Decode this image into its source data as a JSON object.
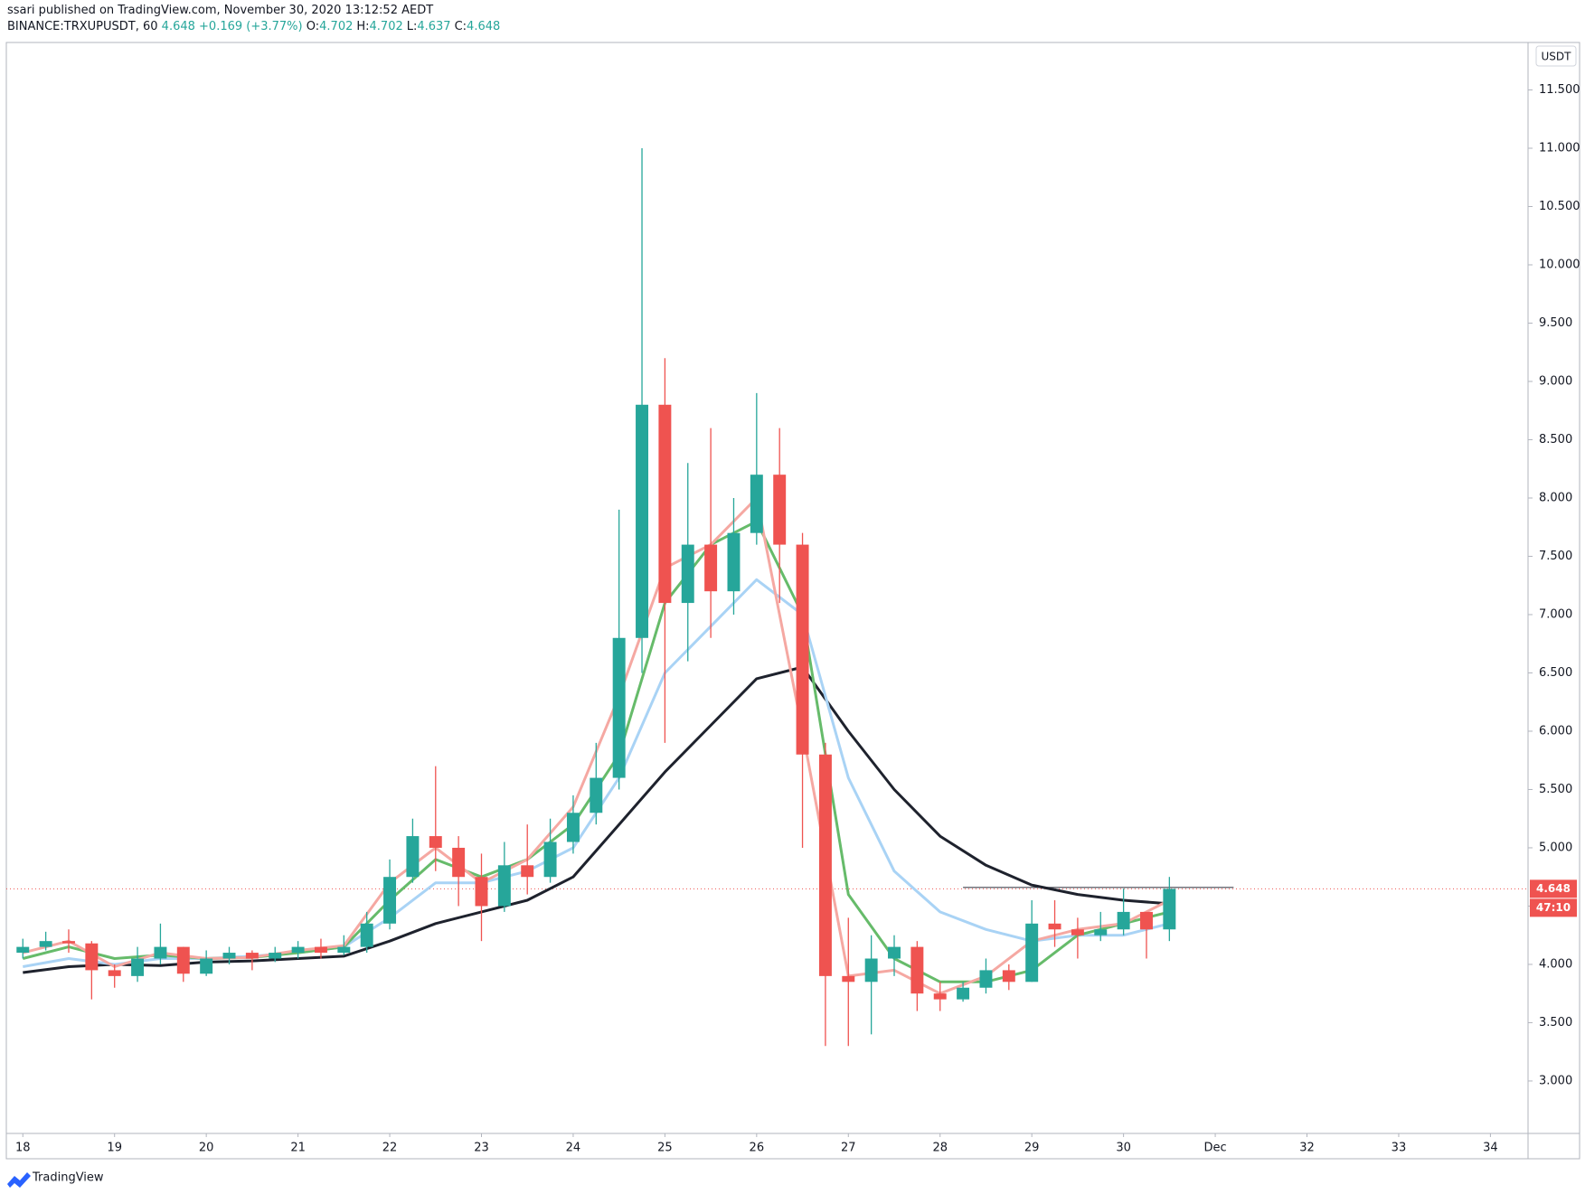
{
  "header": {
    "publish_line": "ssari published on TradingView.com, November 30, 2020 13:12:52 AEDT",
    "brand": "TradingView"
  },
  "chart_data": {
    "type": "candlestick",
    "symbol": "BINANCE:TRXUPUSDT, 60",
    "last_close": 4.648,
    "change": "+0.169 (+3.77%)",
    "ohlc": [
      {
        "label": "O:",
        "value": 4.702
      },
      {
        "label": "H:",
        "value": 4.702
      },
      {
        "label": "L:",
        "value": 4.637
      },
      {
        "label": "C:",
        "value": 4.648
      }
    ],
    "currency": "USDT",
    "last_price": {
      "value": 4.648,
      "label": "4.648"
    },
    "countdown": "47:10",
    "up_color": "#26a69a",
    "down_color": "#ef5350",
    "candles": {
      "x": [
        18,
        18.25,
        18.5,
        18.75,
        19,
        19.25,
        19.5,
        19.75,
        20,
        20.25,
        20.5,
        20.75,
        21,
        21.25,
        21.5,
        21.75,
        22,
        22.25,
        22.5,
        22.75,
        23,
        23.25,
        23.5,
        23.75,
        24,
        24.25,
        24.5,
        24.75,
        25,
        25.25,
        25.5,
        25.75,
        26,
        26.25,
        26.5,
        26.75,
        27,
        27.25,
        27.5,
        27.75,
        28,
        28.25,
        28.5,
        28.75,
        29,
        29.25,
        29.5,
        29.75,
        30,
        30.25,
        30.5
      ],
      "open": [
        4.1,
        4.15,
        4.2,
        4.18,
        3.95,
        3.9,
        4.05,
        4.15,
        3.92,
        4.05,
        4.1,
        4.05,
        4.1,
        4.15,
        4.1,
        4.15,
        4.35,
        4.75,
        5.1,
        5.0,
        4.75,
        4.5,
        4.85,
        4.75,
        5.05,
        5.3,
        5.6,
        6.8,
        8.8,
        7.1,
        7.6,
        7.2,
        7.7,
        8.2,
        7.6,
        5.8,
        3.9,
        3.85,
        4.05,
        4.15,
        3.75,
        3.7,
        3.8,
        3.95,
        3.85,
        4.35,
        4.3,
        4.25,
        4.3,
        4.45,
        4.3
      ],
      "high": [
        4.22,
        4.28,
        4.3,
        4.2,
        4.0,
        4.15,
        4.35,
        4.15,
        4.12,
        4.15,
        4.12,
        4.15,
        4.2,
        4.22,
        4.25,
        4.45,
        4.9,
        5.25,
        5.7,
        5.1,
        4.95,
        5.05,
        5.2,
        5.25,
        5.45,
        5.9,
        7.9,
        11.0,
        9.2,
        8.3,
        8.6,
        8.0,
        8.9,
        8.6,
        7.7,
        5.9,
        4.4,
        4.25,
        4.25,
        4.2,
        3.85,
        3.85,
        4.05,
        4.0,
        4.55,
        4.55,
        4.4,
        4.45,
        4.65,
        4.45,
        4.75
      ],
      "low": [
        4.05,
        4.12,
        4.1,
        3.7,
        3.8,
        3.85,
        4.0,
        3.85,
        3.9,
        4.0,
        3.95,
        4.02,
        4.05,
        4.05,
        4.08,
        4.1,
        4.3,
        4.7,
        4.8,
        4.5,
        4.2,
        4.45,
        4.6,
        4.7,
        4.95,
        5.2,
        5.5,
        6.5,
        5.9,
        6.6,
        6.8,
        7.0,
        7.6,
        7.1,
        5.0,
        3.3,
        3.3,
        3.4,
        3.9,
        3.6,
        3.6,
        3.68,
        3.75,
        3.78,
        3.85,
        4.15,
        4.05,
        4.2,
        4.25,
        4.05,
        4.2
      ],
      "close": [
        4.15,
        4.2,
        4.18,
        3.95,
        3.9,
        4.05,
        4.15,
        3.92,
        4.05,
        4.1,
        4.05,
        4.1,
        4.15,
        4.1,
        4.15,
        4.35,
        4.75,
        5.1,
        5.0,
        4.75,
        4.5,
        4.85,
        4.75,
        5.05,
        5.3,
        5.6,
        6.8,
        8.8,
        7.1,
        7.6,
        7.2,
        7.7,
        8.2,
        7.6,
        5.8,
        3.9,
        3.85,
        4.05,
        4.15,
        3.75,
        3.7,
        3.8,
        3.95,
        3.85,
        4.35,
        4.3,
        4.25,
        4.3,
        4.45,
        4.3,
        4.648
      ]
    },
    "ma_x": [
      18,
      18.5,
      19,
      19.5,
      20,
      20.5,
      21,
      21.5,
      22,
      22.5,
      23,
      23.5,
      24,
      24.5,
      25,
      25.5,
      26,
      26.5,
      27,
      27.5,
      28,
      28.5,
      29,
      29.5,
      30,
      30.5
    ],
    "lines": [
      {
        "color": "#1e222d",
        "width": 3,
        "values": [
          3.93,
          3.98,
          4.0,
          3.99,
          4.02,
          4.03,
          4.05,
          4.07,
          4.2,
          4.35,
          4.45,
          4.55,
          4.75,
          5.2,
          5.65,
          6.05,
          6.45,
          6.55,
          6.0,
          5.5,
          5.1,
          4.85,
          4.68,
          4.6,
          4.55,
          4.52
        ]
      },
      {
        "color": "#a9d3f5",
        "width": 3,
        "values": [
          3.98,
          4.05,
          4.0,
          4.05,
          4.05,
          4.07,
          4.1,
          4.15,
          4.4,
          4.7,
          4.7,
          4.8,
          5.0,
          5.6,
          6.5,
          6.9,
          7.3,
          7.0,
          5.6,
          4.8,
          4.45,
          4.3,
          4.2,
          4.25,
          4.25,
          4.35
        ]
      },
      {
        "color": "#66bb6a",
        "width": 3,
        "values": [
          4.05,
          4.15,
          4.05,
          4.08,
          4.05,
          4.06,
          4.1,
          4.15,
          4.55,
          4.9,
          4.75,
          4.9,
          5.2,
          5.8,
          7.1,
          7.6,
          7.8,
          7.0,
          4.6,
          4.05,
          3.85,
          3.85,
          3.95,
          4.25,
          4.35,
          4.45
        ]
      },
      {
        "color": "#f5a8a2",
        "width": 3,
        "values": [
          4.1,
          4.2,
          3.98,
          4.1,
          4.05,
          4.06,
          4.12,
          4.16,
          4.7,
          5.0,
          4.7,
          4.9,
          5.35,
          6.3,
          7.4,
          7.6,
          8.0,
          6.0,
          3.9,
          3.95,
          3.75,
          3.9,
          4.2,
          4.3,
          4.35,
          4.55
        ]
      }
    ],
    "level_line": {
      "value": 4.66,
      "x": [
        28.25,
        31.2
      ]
    },
    "xlim": [
      17.82,
      34.41
    ],
    "xticks": [
      18,
      19,
      20,
      21,
      22,
      23,
      24,
      25,
      26,
      27,
      28,
      29,
      30,
      {
        "value": 31,
        "label": "Dec"
      },
      32,
      33,
      34
    ],
    "ylim": [
      2.55,
      11.907
    ],
    "yticks": [
      {
        "value": 3,
        "label": "3.000"
      },
      {
        "value": 3.5,
        "label": "3.500"
      },
      {
        "value": 4,
        "label": "4.000"
      },
      {
        "value": 4.5,
        "label": "4.500"
      },
      {
        "value": 5,
        "label": "5.000"
      },
      {
        "value": 5.5,
        "label": "5.500"
      },
      {
        "value": 6,
        "label": "6.000"
      },
      {
        "value": 6.5,
        "label": "6.500"
      },
      {
        "value": 7,
        "label": "7.000"
      },
      {
        "value": 7.5,
        "label": "7.500"
      },
      {
        "value": 8,
        "label": "8.000"
      },
      {
        "value": 8.5,
        "label": "8.500"
      },
      {
        "value": 9,
        "label": "9.000"
      },
      {
        "value": 9.5,
        "label": "9.500"
      },
      {
        "value": 10,
        "label": "10.000"
      },
      {
        "value": 10.5,
        "label": "10.500"
      },
      {
        "value": 11,
        "label": "11.000"
      },
      {
        "value": 11.5,
        "label": "11.500"
      }
    ],
    "grid": false
  }
}
